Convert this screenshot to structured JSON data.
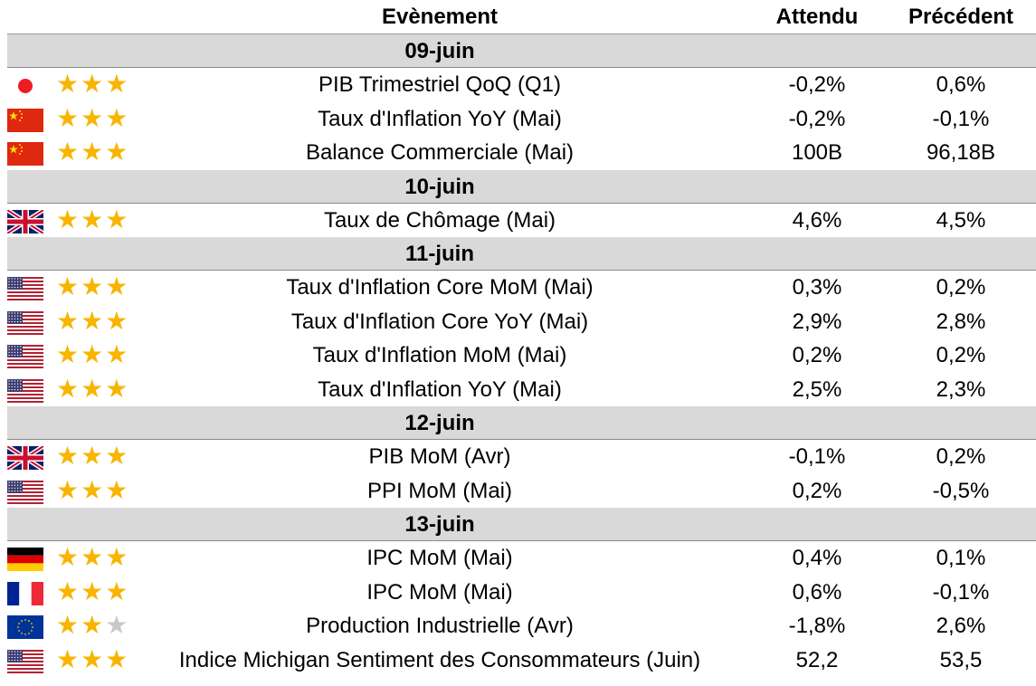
{
  "header": {
    "event": "Evènement",
    "expected": "Attendu",
    "previous": "Précédent"
  },
  "days": [
    {
      "date": "09-juin",
      "events": [
        {
          "country": "japan",
          "flag_icon": "japan-flag-icon",
          "stars": 3,
          "event": "PIB Trimestriel QoQ (Q1)",
          "expected": "-0,2%",
          "previous": "0,6%"
        },
        {
          "country": "china",
          "flag_icon": "china-flag-icon",
          "stars": 3,
          "event": "Taux d'Inflation YoY (Mai)",
          "expected": "-0,2%",
          "previous": "-0,1%"
        },
        {
          "country": "china",
          "flag_icon": "china-flag-icon",
          "stars": 3,
          "event": "Balance Commerciale (Mai)",
          "expected": "100B",
          "previous": "96,18B"
        }
      ]
    },
    {
      "date": "10-juin",
      "events": [
        {
          "country": "uk",
          "flag_icon": "uk-flag-icon",
          "stars": 3,
          "event": "Taux de Chômage (Mai)",
          "expected": "4,6%",
          "previous": "4,5%"
        }
      ]
    },
    {
      "date": "11-juin",
      "events": [
        {
          "country": "us",
          "flag_icon": "us-flag-icon",
          "stars": 3,
          "event": "Taux d'Inflation Core MoM (Mai)",
          "expected": "0,3%",
          "previous": "0,2%"
        },
        {
          "country": "us",
          "flag_icon": "us-flag-icon",
          "stars": 3,
          "event": "Taux d'Inflation Core YoY (Mai)",
          "expected": "2,9%",
          "previous": "2,8%"
        },
        {
          "country": "us",
          "flag_icon": "us-flag-icon",
          "stars": 3,
          "event": "Taux d'Inflation MoM (Mai)",
          "expected": "0,2%",
          "previous": "0,2%"
        },
        {
          "country": "us",
          "flag_icon": "us-flag-icon",
          "stars": 3,
          "event": "Taux d'Inflation YoY (Mai)",
          "expected": "2,5%",
          "previous": "2,3%"
        }
      ]
    },
    {
      "date": "12-juin",
      "events": [
        {
          "country": "uk",
          "flag_icon": "uk-flag-icon",
          "stars": 3,
          "event": "PIB MoM (Avr)",
          "expected": "-0,1%",
          "previous": "0,2%"
        },
        {
          "country": "us",
          "flag_icon": "us-flag-icon",
          "stars": 3,
          "event": "PPI MoM (Mai)",
          "expected": "0,2%",
          "previous": "-0,5%"
        }
      ]
    },
    {
      "date": "13-juin",
      "events": [
        {
          "country": "germany",
          "flag_icon": "germany-flag-icon",
          "stars": 3,
          "event": "IPC MoM (Mai)",
          "expected": "0,4%",
          "previous": "0,1%"
        },
        {
          "country": "france",
          "flag_icon": "france-flag-icon",
          "stars": 3,
          "event": "IPC MoM (Mai)",
          "expected": "0,6%",
          "previous": "-0,1%"
        },
        {
          "country": "eu",
          "flag_icon": "eu-flag-icon",
          "stars": 2,
          "event": "Production Industrielle (Avr)",
          "expected": "-1,8%",
          "previous": "2,6%"
        },
        {
          "country": "us",
          "flag_icon": "us-flag-icon",
          "stars": 3,
          "event": "Indice Michigan Sentiment des Consommateurs (Juin)",
          "expected": "52,2",
          "previous": "53,5"
        }
      ]
    }
  ],
  "colors": {
    "star_on": "#f7b500",
    "star_off": "#c8c8c8",
    "date_band": "#d9d9d9"
  }
}
